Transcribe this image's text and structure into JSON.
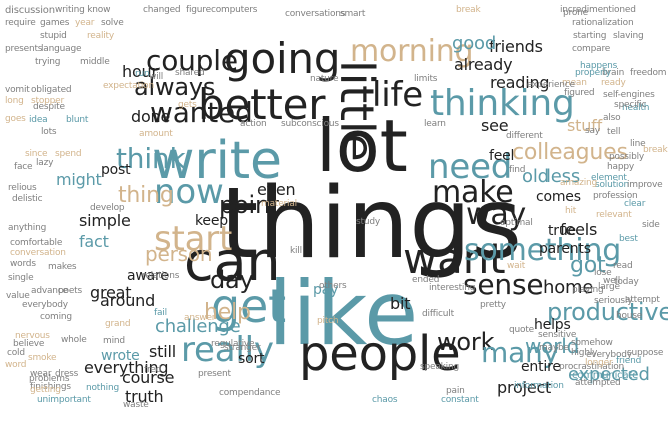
{
  "colors": {
    "dark": "#222222",
    "blue": "#5b9aa8",
    "tan": "#d2b48c",
    "gray": "#7f7f7f",
    "background": "#ffffff"
  },
  "cloud": {
    "words": [
      {
        "text": "things",
        "color": "dark"
      },
      {
        "text": "like",
        "color": "blue"
      },
      {
        "text": "lot",
        "color": "dark"
      },
      {
        "text": "little",
        "color": "dark"
      },
      {
        "text": "can",
        "color": "dark"
      },
      {
        "text": "people",
        "color": "dark"
      },
      {
        "text": "write",
        "color": "blue"
      },
      {
        "text": "better",
        "color": "dark"
      },
      {
        "text": "going",
        "color": "dark"
      },
      {
        "text": "want",
        "color": "dark"
      },
      {
        "text": "get",
        "color": "blue"
      },
      {
        "text": "life",
        "color": "dark"
      },
      {
        "text": "thinking",
        "color": "blue"
      },
      {
        "text": "need",
        "color": "blue"
      },
      {
        "text": "now",
        "color": "blue"
      },
      {
        "text": "really",
        "color": "blue"
      },
      {
        "text": "start",
        "color": "tan"
      },
      {
        "text": "morning",
        "color": "tan"
      },
      {
        "text": "something",
        "color": "blue"
      },
      {
        "text": "make",
        "color": "dark"
      },
      {
        "text": "way",
        "color": "dark"
      },
      {
        "text": "sense",
        "color": "dark"
      },
      {
        "text": "think",
        "color": "blue"
      },
      {
        "text": "couple",
        "color": "dark"
      },
      {
        "text": "wanted",
        "color": "dark"
      },
      {
        "text": "always",
        "color": "dark"
      },
      {
        "text": "point",
        "color": "dark"
      },
      {
        "text": "work",
        "color": "dark"
      },
      {
        "text": "many",
        "color": "blue"
      },
      {
        "text": "productive",
        "color": "blue"
      },
      {
        "text": "world",
        "color": "blue"
      },
      {
        "text": "colleagues",
        "color": "tan"
      },
      {
        "text": "got",
        "color": "blue"
      },
      {
        "text": "day",
        "color": "dark"
      },
      {
        "text": "thing",
        "color": "tan"
      },
      {
        "text": "stuff",
        "color": "tan"
      },
      {
        "text": "help",
        "color": "tan"
      },
      {
        "text": "person",
        "color": "tan"
      },
      {
        "text": "challenge",
        "color": "blue"
      },
      {
        "text": "everything",
        "color": "dark"
      },
      {
        "text": "expected",
        "color": "blue"
      },
      {
        "text": "fact",
        "color": "blue"
      },
      {
        "text": "might",
        "color": "blue"
      },
      {
        "text": "parents",
        "color": "dark"
      },
      {
        "text": "feels",
        "color": "dark"
      },
      {
        "text": "comes",
        "color": "dark"
      },
      {
        "text": "reading",
        "color": "dark"
      },
      {
        "text": "already",
        "color": "dark"
      },
      {
        "text": "friends",
        "color": "dark"
      },
      {
        "text": "good",
        "color": "blue"
      },
      {
        "text": "done",
        "color": "dark"
      },
      {
        "text": "hour",
        "color": "dark"
      },
      {
        "text": "post",
        "color": "dark"
      },
      {
        "text": "even",
        "color": "dark"
      },
      {
        "text": "keep",
        "color": "dark"
      },
      {
        "text": "feel",
        "color": "dark"
      },
      {
        "text": "see",
        "color": "dark"
      },
      {
        "text": "old",
        "color": "blue"
      },
      {
        "text": "less",
        "color": "blue"
      },
      {
        "text": "true",
        "color": "dark"
      },
      {
        "text": "simple",
        "color": "dark"
      },
      {
        "text": "aware",
        "color": "dark"
      },
      {
        "text": "great",
        "color": "dark"
      },
      {
        "text": "around",
        "color": "dark"
      },
      {
        "text": "still",
        "color": "dark"
      },
      {
        "text": "wrote",
        "color": "blue"
      },
      {
        "text": "course",
        "color": "dark"
      },
      {
        "text": "truth",
        "color": "dark"
      },
      {
        "text": "sort",
        "color": "dark"
      },
      {
        "text": "entire",
        "color": "dark"
      },
      {
        "text": "project",
        "color": "dark"
      },
      {
        "text": "helps",
        "color": "dark"
      },
      {
        "text": "home",
        "color": "dark"
      },
      {
        "text": "bit",
        "color": "dark"
      },
      {
        "text": "pay",
        "color": "blue"
      },
      {
        "text": "discussion",
        "color": "gray"
      },
      {
        "text": "writing know",
        "color": "gray"
      },
      {
        "text": "changed",
        "color": "gray"
      },
      {
        "text": "figure",
        "color": "gray"
      },
      {
        "text": "computers",
        "color": "gray"
      },
      {
        "text": "conversations",
        "color": "gray"
      },
      {
        "text": "smart",
        "color": "gray"
      },
      {
        "text": "break",
        "color": "tan"
      },
      {
        "text": "incredimentioned",
        "color": "gray"
      },
      {
        "text": "require",
        "color": "gray"
      },
      {
        "text": "games",
        "color": "gray"
      },
      {
        "text": "year",
        "color": "tan"
      },
      {
        "text": "solve",
        "color": "gray"
      },
      {
        "text": "stupid",
        "color": "gray"
      },
      {
        "text": "reality",
        "color": "tan"
      },
      {
        "text": "rationalization",
        "color": "gray"
      },
      {
        "text": "starting",
        "color": "gray"
      },
      {
        "text": "slaving",
        "color": "gray"
      },
      {
        "text": "presents",
        "color": "gray"
      },
      {
        "text": "language",
        "color": "gray"
      },
      {
        "text": "trying",
        "color": "gray"
      },
      {
        "text": "middle",
        "color": "gray"
      },
      {
        "text": "compare",
        "color": "gray"
      },
      {
        "text": "brain",
        "color": "gray"
      },
      {
        "text": "freedom",
        "color": "gray"
      },
      {
        "text": "action",
        "color": "gray"
      },
      {
        "text": "subconscious",
        "color": "gray"
      },
      {
        "text": "will",
        "color": "gray"
      },
      {
        "text": "despite",
        "color": "gray"
      },
      {
        "text": "different",
        "color": "gray"
      },
      {
        "text": "health",
        "color": "blue"
      },
      {
        "text": "quote",
        "color": "gray"
      },
      {
        "text": "everybody",
        "color": "gray"
      },
      {
        "text": "procrastination",
        "color": "gray"
      },
      {
        "text": "communicate",
        "color": "blue"
      },
      {
        "text": "information",
        "color": "blue"
      },
      {
        "text": "waste",
        "color": "gray"
      },
      {
        "text": "constant",
        "color": "blue"
      },
      {
        "text": "present",
        "color": "gray"
      },
      {
        "text": "problems",
        "color": "gray"
      },
      {
        "text": "mind",
        "color": "gray"
      },
      {
        "text": "word",
        "color": "tan"
      },
      {
        "text": "cold",
        "color": "gray"
      },
      {
        "text": "coming",
        "color": "gray"
      },
      {
        "text": "whole",
        "color": "gray"
      },
      {
        "text": "advance",
        "color": "gray"
      },
      {
        "text": "single",
        "color": "gray"
      },
      {
        "text": "anything",
        "color": "gray"
      },
      {
        "text": "comfortable",
        "color": "gray"
      },
      {
        "text": "lazy",
        "color": "gray"
      },
      {
        "text": "face",
        "color": "gray"
      },
      {
        "text": "lots",
        "color": "gray"
      },
      {
        "text": "nothing",
        "color": "blue"
      },
      {
        "text": "unimportant",
        "color": "blue"
      },
      {
        "text": "stranger",
        "color": "gray"
      },
      {
        "text": "speaking",
        "color": "gray"
      },
      {
        "text": "pretty",
        "color": "gray"
      },
      {
        "text": "interesting",
        "color": "gray"
      },
      {
        "text": "playing",
        "color": "gray"
      },
      {
        "text": "today",
        "color": "gray"
      },
      {
        "text": "find",
        "color": "gray"
      },
      {
        "text": "study",
        "color": "gray"
      },
      {
        "text": "nature",
        "color": "gray"
      },
      {
        "text": "learn",
        "color": "gray"
      },
      {
        "text": "house",
        "color": "gray"
      },
      {
        "text": "suppose",
        "color": "gray"
      },
      {
        "text": "highly",
        "color": "gray"
      },
      {
        "text": "sensitive",
        "color": "gray"
      },
      {
        "text": "maybe",
        "color": "gray"
      },
      {
        "text": "somehow",
        "color": "gray"
      },
      {
        "text": "friend",
        "color": "blue"
      },
      {
        "text": "longer",
        "color": "tan"
      },
      {
        "text": "fred",
        "color": "gray"
      },
      {
        "text": "grand",
        "color": "tan"
      },
      {
        "text": "ended",
        "color": "gray"
      },
      {
        "text": "difficult",
        "color": "gray"
      },
      {
        "text": "makes",
        "color": "gray"
      },
      {
        "text": "relations",
        "color": "gray"
      },
      {
        "text": "develop",
        "color": "gray"
      },
      {
        "text": "happy",
        "color": "gray"
      },
      {
        "text": "element",
        "color": "blue"
      },
      {
        "text": "solution",
        "color": "blue"
      },
      {
        "text": "profession",
        "color": "gray"
      },
      {
        "text": "improve",
        "color": "gray"
      },
      {
        "text": "possibly",
        "color": "gray"
      },
      {
        "text": "figured",
        "color": "gray"
      },
      {
        "text": "self-engines",
        "color": "gray"
      },
      {
        "text": "specific",
        "color": "gray"
      },
      {
        "text": "properly",
        "color": "blue"
      },
      {
        "text": "ready",
        "color": "tan"
      },
      {
        "text": "happens",
        "color": "blue"
      },
      {
        "text": "mean",
        "color": "tan"
      },
      {
        "text": "experience",
        "color": "gray"
      },
      {
        "text": "limits",
        "color": "gray"
      },
      {
        "text": "expectation",
        "color": "tan"
      },
      {
        "text": "vomit",
        "color": "gray"
      },
      {
        "text": "obligated",
        "color": "gray"
      },
      {
        "text": "long",
        "color": "tan"
      },
      {
        "text": "stopper",
        "color": "tan"
      },
      {
        "text": "goes",
        "color": "tan"
      },
      {
        "text": "value",
        "color": "gray"
      },
      {
        "text": "everybody",
        "color": "gray"
      },
      {
        "text": "poets",
        "color": "gray"
      },
      {
        "text": "regulative",
        "color": "gray"
      },
      {
        "text": "answer",
        "color": "tan"
      },
      {
        "text": "fail",
        "color": "blue"
      },
      {
        "text": "kill",
        "color": "gray"
      },
      {
        "text": "material",
        "color": "tan"
      },
      {
        "text": "wait",
        "color": "tan"
      },
      {
        "text": "optimal",
        "color": "gray"
      },
      {
        "text": "relevant",
        "color": "tan"
      },
      {
        "text": "side",
        "color": "gray"
      },
      {
        "text": "clear",
        "color": "blue"
      },
      {
        "text": "best",
        "color": "blue"
      },
      {
        "text": "pitch",
        "color": "tan"
      },
      {
        "text": "others",
        "color": "gray"
      },
      {
        "text": "chaos",
        "color": "blue"
      },
      {
        "text": "pain",
        "color": "gray"
      },
      {
        "text": "attempted",
        "color": "gray"
      },
      {
        "text": "compendance",
        "color": "gray"
      },
      {
        "text": "finishings",
        "color": "gray"
      },
      {
        "text": "getting",
        "color": "tan"
      },
      {
        "text": "prone",
        "color": "gray"
      },
      {
        "text": "amount",
        "color": "tan"
      },
      {
        "text": "since",
        "color": "tan"
      },
      {
        "text": "spend",
        "color": "tan"
      },
      {
        "text": "relious",
        "color": "gray"
      },
      {
        "text": "delistic",
        "color": "gray"
      },
      {
        "text": "hit",
        "color": "tan"
      },
      {
        "text": "run",
        "color": "blue"
      },
      {
        "text": "shared",
        "color": "gray"
      },
      {
        "text": "gets",
        "color": "tan"
      },
      {
        "text": "idea",
        "color": "blue"
      },
      {
        "text": "blunt",
        "color": "blue"
      },
      {
        "text": "also",
        "color": "gray"
      },
      {
        "text": "say",
        "color": "gray"
      },
      {
        "text": "tell",
        "color": "gray"
      },
      {
        "text": "line",
        "color": "gray"
      },
      {
        "text": "break",
        "color": "tan"
      },
      {
        "text": "amazing",
        "color": "tan"
      },
      {
        "text": "lose",
        "color": "gray"
      },
      {
        "text": "read",
        "color": "gray"
      },
      {
        "text": "well",
        "color": "gray"
      },
      {
        "text": "large",
        "color": "gray"
      },
      {
        "text": "seriously",
        "color": "gray"
      },
      {
        "text": "attempt",
        "color": "gray"
      },
      {
        "text": "conversation",
        "color": "tan"
      },
      {
        "text": "words",
        "color": "gray"
      },
      {
        "text": "nervous",
        "color": "tan"
      },
      {
        "text": "wear",
        "color": "gray"
      },
      {
        "text": "dress",
        "color": "gray"
      },
      {
        "text": "smoke",
        "color": "tan"
      },
      {
        "text": "believe",
        "color": "gray"
      }
    ]
  }
}
